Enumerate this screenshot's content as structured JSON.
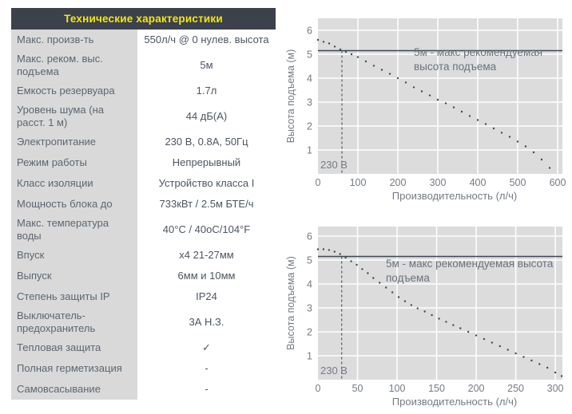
{
  "colors": {
    "header_bg": "#3c414b",
    "header_text": "#f2e51d",
    "label_col_bg": "#d9d9d9",
    "label_text": "#5d6670",
    "value_text": "#4d5562",
    "plot_bg": "#dcdcdc",
    "grid": "#ffffff",
    "limit_line": "#3f4450",
    "curve_dots": "#43474f",
    "dashed_line": "#555a60",
    "axis_text": "#757b84",
    "annotation_text": "#6b717b"
  },
  "table": {
    "title": "Технические характеристики",
    "rows": [
      {
        "label": "Макс. произв-ть",
        "value": "550л/ч @ 0 нулев. высота"
      },
      {
        "label": "Макс. реком. выс. подъема",
        "value": "5м"
      },
      {
        "label": "Емкость резервуара",
        "value": "1.7л"
      },
      {
        "label": "Уровень шума (на расст. 1 м)",
        "value": "44 дБ(А)"
      },
      {
        "label": "Электропитание",
        "value": "230 В, 0.8А, 50Гц"
      },
      {
        "label": "Режим работы",
        "value": "Непрерывный"
      },
      {
        "label": "Класс изоляции",
        "value": "Устройство класса I"
      },
      {
        "label": "Мощность блока до",
        "value": "733кВт / 2.5м БТЕ/ч"
      },
      {
        "label": "Макс. температура воды",
        "value": "40°C / 40оС/104°F"
      },
      {
        "label": "Впуск",
        "value": "х4 21-27мм"
      },
      {
        "label": "Выпуск",
        "value": "6мм и 10мм"
      },
      {
        "label": "Степень защиты IP",
        "value": "IP24"
      },
      {
        "label": "Выключатель-предохранитель",
        "value": "3А Н.З."
      },
      {
        "label": "Тепловая защита",
        "value": "✓"
      },
      {
        "label": "Полная герметизация",
        "value": "-"
      },
      {
        "label": "Самовсасывание",
        "value": "-"
      }
    ]
  },
  "chart_data": [
    {
      "type": "scatter",
      "title": "",
      "xlabel": "Производительность (л/ч)",
      "ylabel": "Высота подъема (м)",
      "annotation": "5м - макс рекомендуемая высота подъема",
      "voltage_label": "230 В",
      "x_ticks": [
        0,
        100,
        200,
        300,
        400,
        500,
        600
      ],
      "y_ticks": [
        1,
        2,
        3,
        4,
        5,
        6
      ],
      "xlim": [
        0,
        612
      ],
      "ylim": [
        0,
        6.5
      ],
      "grid": true,
      "hline_y": 5.15,
      "vline_x": 60,
      "points": [
        [
          0,
          5.6
        ],
        [
          14,
          5.52
        ],
        [
          28,
          5.45
        ],
        [
          42,
          5.32
        ],
        [
          56,
          5.2
        ],
        [
          70,
          5.1
        ],
        [
          84,
          5.0
        ],
        [
          100,
          4.88
        ],
        [
          120,
          4.7
        ],
        [
          140,
          4.52
        ],
        [
          160,
          4.35
        ],
        [
          180,
          4.18
        ],
        [
          200,
          4.0
        ],
        [
          220,
          3.82
        ],
        [
          240,
          3.62
        ],
        [
          260,
          3.45
        ],
        [
          280,
          3.28
        ],
        [
          300,
          3.1
        ],
        [
          320,
          2.95
        ],
        [
          340,
          2.78
        ],
        [
          360,
          2.6
        ],
        [
          380,
          2.42
        ],
        [
          400,
          2.25
        ],
        [
          420,
          2.08
        ],
        [
          440,
          1.9
        ],
        [
          460,
          1.72
        ],
        [
          480,
          1.55
        ],
        [
          500,
          1.35
        ],
        [
          520,
          1.15
        ],
        [
          540,
          0.9
        ],
        [
          560,
          0.6
        ],
        [
          580,
          0.25
        ]
      ]
    },
    {
      "type": "scatter",
      "title": "",
      "xlabel": "Производительность (л/ч)",
      "ylabel": "Высота подъема (м)",
      "annotation": "5м - макс рекомендуемая высота подъема",
      "voltage_label": "230 В",
      "x_ticks": [
        0,
        50,
        100,
        150,
        200,
        250,
        300
      ],
      "y_ticks": [
        1,
        2,
        3,
        4,
        5,
        6
      ],
      "xlim": [
        0,
        309
      ],
      "ylim": [
        0,
        6.5
      ],
      "grid": true,
      "hline_y": 5.15,
      "vline_x": 30,
      "points": [
        [
          0,
          5.45
        ],
        [
          7,
          5.45
        ],
        [
          14,
          5.42
        ],
        [
          21,
          5.35
        ],
        [
          28,
          5.25
        ],
        [
          35,
          5.1
        ],
        [
          42,
          4.95
        ],
        [
          49,
          4.8
        ],
        [
          56,
          4.62
        ],
        [
          63,
          4.45
        ],
        [
          70,
          4.25
        ],
        [
          78,
          4.05
        ],
        [
          86,
          3.85
        ],
        [
          94,
          3.65
        ],
        [
          102,
          3.45
        ],
        [
          110,
          3.28
        ],
        [
          118,
          3.12
        ],
        [
          126,
          2.98
        ],
        [
          135,
          2.85
        ],
        [
          144,
          2.7
        ],
        [
          153,
          2.55
        ],
        [
          162,
          2.42
        ],
        [
          171,
          2.28
        ],
        [
          180,
          2.15
        ],
        [
          190,
          2.0
        ],
        [
          200,
          1.85
        ],
        [
          210,
          1.7
        ],
        [
          220,
          1.55
        ],
        [
          230,
          1.4
        ],
        [
          240,
          1.25
        ],
        [
          250,
          1.1
        ],
        [
          260,
          0.95
        ],
        [
          270,
          0.8
        ],
        [
          280,
          0.65
        ],
        [
          290,
          0.5
        ],
        [
          300,
          0.3
        ],
        [
          308,
          0.15
        ]
      ]
    }
  ]
}
